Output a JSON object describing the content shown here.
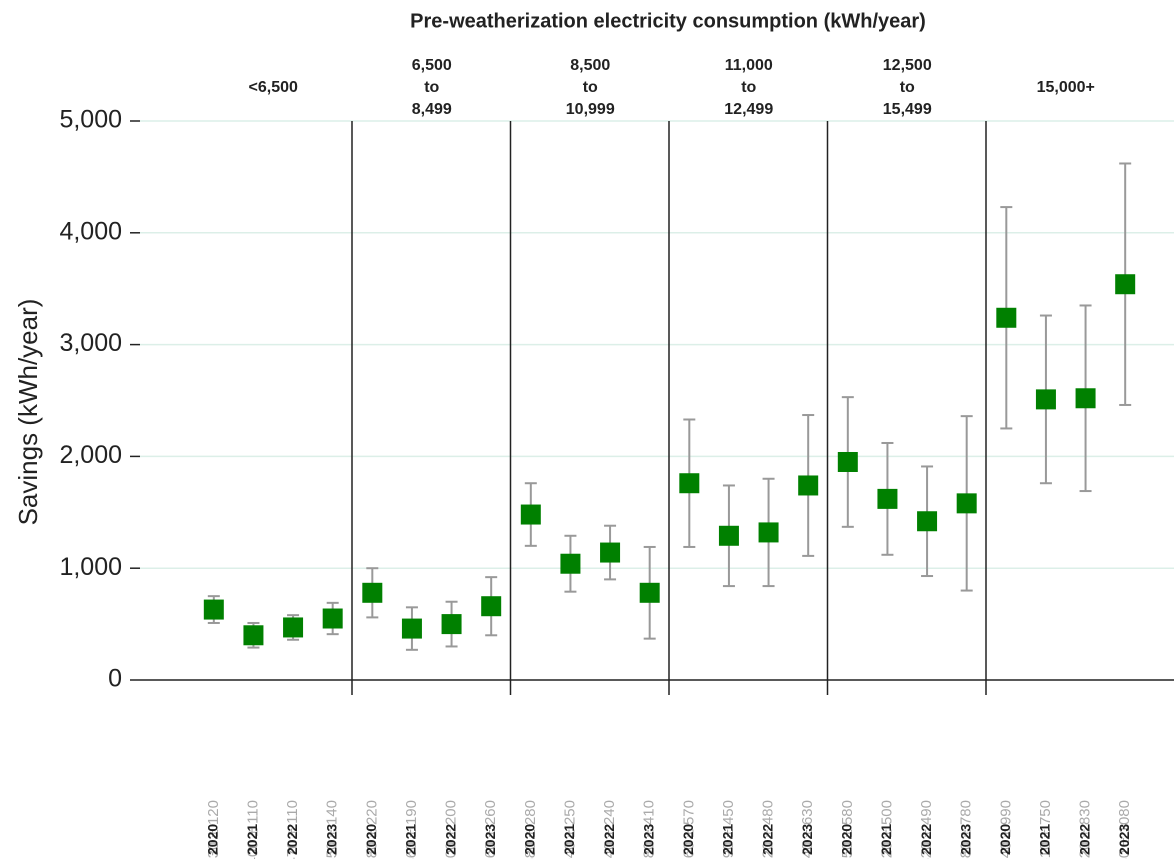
{
  "chart_data": {
    "type": "errorbar",
    "title": "Pre-weatherization electricity consumption (kWh/year)",
    "y_label": "Savings (kWh/year)",
    "ylim": [
      0,
      5000
    ],
    "yticks": [
      0,
      {
        "value": 1000,
        "label": "1,000"
      },
      {
        "value": 2000,
        "label": "2,000"
      },
      {
        "value": 3000,
        "label": "3,000"
      },
      {
        "value": 4000,
        "label": "4,000"
      },
      {
        "value": 5000,
        "label": "5,000"
      }
    ],
    "grid": true,
    "color": "#008000",
    "error_color": "#999999",
    "groups": [
      {
        "label_lines": [
          "<6,500"
        ],
        "categories": [
          "2020",
          "2021",
          "2022",
          "2023"
        ],
        "values": [
          630,
          400,
          470,
          550
        ],
        "errors": [
          120,
          110,
          110,
          140
        ],
        "value_labels": [
          "630 ± 120",
          "400 ± 110",
          "470 ± 110",
          "550 ± 140"
        ]
      },
      {
        "label_lines": [
          "6,500",
          "to",
          "8,499"
        ],
        "categories": [
          "2020",
          "2021",
          "2022",
          "2023"
        ],
        "values": [
          780,
          460,
          500,
          660
        ],
        "errors": [
          220,
          190,
          200,
          260
        ],
        "value_labels": [
          "780 ± 220",
          "460 ± 190",
          "500 ± 200",
          "660 ± 260"
        ]
      },
      {
        "label_lines": [
          "8,500",
          "to",
          "10,999"
        ],
        "categories": [
          "2020",
          "2021",
          "2022",
          "2023"
        ],
        "values": [
          1480,
          1040,
          1140,
          780
        ],
        "errors": [
          280,
          250,
          240,
          410
        ],
        "value_labels": [
          "1,480 ± 280",
          "1,040 ± 250",
          "1,140 ± 240",
          "780 ± 410"
        ]
      },
      {
        "label_lines": [
          "11,000",
          "to",
          "12,499"
        ],
        "categories": [
          "2020",
          "2021",
          "2022",
          "2023"
        ],
        "values": [
          1760,
          1290,
          1320,
          1740
        ],
        "errors": [
          570,
          450,
          480,
          630
        ],
        "value_labels": [
          "1,760 ± 570",
          "1,290 ± 450",
          "1,320 ± 480",
          "1,740 ± 630"
        ]
      },
      {
        "label_lines": [
          "12,500",
          "to",
          "15,499"
        ],
        "categories": [
          "2020",
          "2021",
          "2022",
          "2023"
        ],
        "values": [
          1950,
          1620,
          1420,
          1580
        ],
        "errors": [
          580,
          500,
          490,
          780
        ],
        "value_labels": [
          "1,950 ± 580",
          "1,620 ± 500",
          "1,420 ± 490",
          "1,580 ± 780"
        ]
      },
      {
        "label_lines": [
          "15,000+"
        ],
        "categories": [
          "2020",
          "2021",
          "2022",
          "2023"
        ],
        "values": [
          3240,
          2510,
          2520,
          3540
        ],
        "errors": [
          990,
          750,
          830,
          1080
        ],
        "value_labels": [
          "3,240 ± 990",
          "2,510 ± 750",
          "2,520 ± 830",
          "3,540 ± 1080"
        ]
      }
    ]
  }
}
